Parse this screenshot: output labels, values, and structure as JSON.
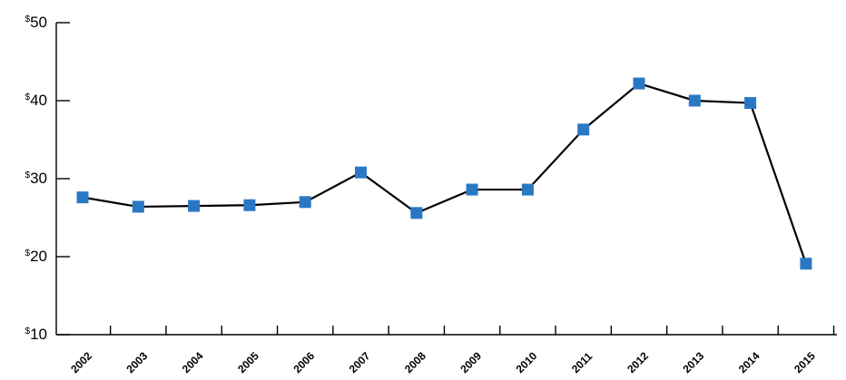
{
  "chart_data": {
    "type": "line",
    "title": "",
    "xlabel": "",
    "ylabel": "",
    "categories": [
      "2002",
      "2003",
      "2004",
      "2005",
      "2006",
      "2007",
      "2008",
      "2009",
      "2010",
      "2011",
      "2012",
      "2013",
      "2014",
      "2015"
    ],
    "series": [
      {
        "values": [
          27.6,
          26.4,
          26.5,
          26.6,
          27.0,
          30.8,
          25.6,
          28.6,
          28.6,
          36.3,
          42.2,
          40.0,
          39.7,
          19.1
        ]
      }
    ],
    "ylim": [
      10,
      50
    ],
    "yticks": [
      10,
      20,
      30,
      40,
      50
    ],
    "ytick_prefix": "$",
    "grid": false,
    "legend": "none",
    "colors": {
      "line": "#000000",
      "marker": "#2a78c4",
      "axis": "#000000"
    }
  }
}
